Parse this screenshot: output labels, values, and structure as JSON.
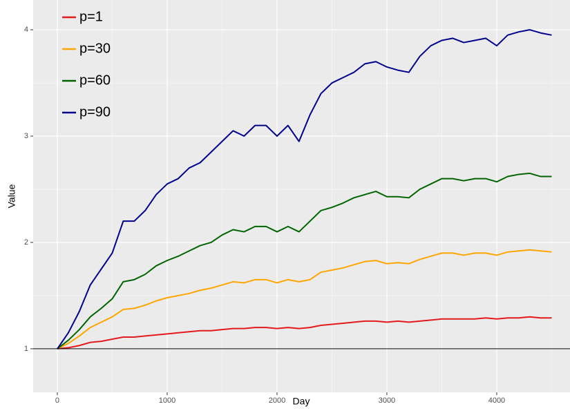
{
  "chart_data": {
    "type": "line",
    "x_label": "Day",
    "y_label": "Value",
    "x": [
      0,
      100,
      200,
      300,
      400,
      500,
      600,
      700,
      800,
      900,
      1000,
      1100,
      1200,
      1300,
      1400,
      1500,
      1600,
      1700,
      1800,
      1900,
      2000,
      2100,
      2200,
      2300,
      2400,
      2500,
      2600,
      2700,
      2800,
      2900,
      3000,
      3100,
      3200,
      3300,
      3400,
      3500,
      3600,
      3700,
      3800,
      3900,
      4000,
      4100,
      4200,
      4300,
      4400,
      4500
    ],
    "series": [
      {
        "name": "p=1",
        "color": "#e31a1c",
        "values": [
          1.0,
          1.01,
          1.03,
          1.06,
          1.07,
          1.09,
          1.11,
          1.11,
          1.12,
          1.13,
          1.14,
          1.15,
          1.16,
          1.17,
          1.17,
          1.18,
          1.19,
          1.19,
          1.2,
          1.2,
          1.19,
          1.2,
          1.19,
          1.2,
          1.22,
          1.23,
          1.24,
          1.25,
          1.26,
          1.26,
          1.25,
          1.26,
          1.25,
          1.26,
          1.27,
          1.28,
          1.28,
          1.28,
          1.28,
          1.29,
          1.28,
          1.29,
          1.29,
          1.3,
          1.29,
          1.29
        ]
      },
      {
        "name": "p=30",
        "color": "#ffa500",
        "values": [
          1.0,
          1.05,
          1.12,
          1.2,
          1.25,
          1.3,
          1.37,
          1.38,
          1.41,
          1.45,
          1.48,
          1.5,
          1.52,
          1.55,
          1.57,
          1.6,
          1.63,
          1.62,
          1.65,
          1.65,
          1.62,
          1.65,
          1.63,
          1.65,
          1.72,
          1.74,
          1.76,
          1.79,
          1.82,
          1.83,
          1.8,
          1.81,
          1.8,
          1.84,
          1.87,
          1.9,
          1.9,
          1.88,
          1.9,
          1.9,
          1.88,
          1.91,
          1.92,
          1.93,
          1.92,
          1.91
        ]
      },
      {
        "name": "p=60",
        "color": "#006400",
        "values": [
          1.0,
          1.08,
          1.18,
          1.3,
          1.38,
          1.47,
          1.63,
          1.65,
          1.7,
          1.78,
          1.83,
          1.87,
          1.92,
          1.97,
          2.0,
          2.07,
          2.12,
          2.1,
          2.15,
          2.15,
          2.1,
          2.15,
          2.1,
          2.2,
          2.3,
          2.33,
          2.37,
          2.42,
          2.45,
          2.48,
          2.43,
          2.43,
          2.42,
          2.5,
          2.55,
          2.6,
          2.6,
          2.58,
          2.6,
          2.6,
          2.57,
          2.62,
          2.64,
          2.65,
          2.62,
          2.62
        ]
      },
      {
        "name": "p=90",
        "color": "#00008b",
        "values": [
          1.0,
          1.15,
          1.35,
          1.6,
          1.75,
          1.9,
          2.2,
          2.2,
          2.3,
          2.45,
          2.55,
          2.6,
          2.7,
          2.75,
          2.85,
          2.95,
          3.05,
          3.0,
          3.1,
          3.1,
          3.0,
          3.1,
          2.95,
          3.2,
          3.4,
          3.5,
          3.55,
          3.6,
          3.68,
          3.7,
          3.65,
          3.62,
          3.6,
          3.75,
          3.85,
          3.9,
          3.92,
          3.88,
          3.9,
          3.92,
          3.85,
          3.95,
          3.98,
          4.0,
          3.97,
          3.95
        ]
      }
    ],
    "hline": 1,
    "xlim": [
      -220,
      4667
    ],
    "xticks": [
      0,
      1000,
      2000,
      3000,
      4000
    ],
    "ylim": [
      0.59,
      4.28
    ],
    "yticks": [
      1,
      2,
      3,
      4
    ],
    "grid": true,
    "legend": "top-left"
  }
}
